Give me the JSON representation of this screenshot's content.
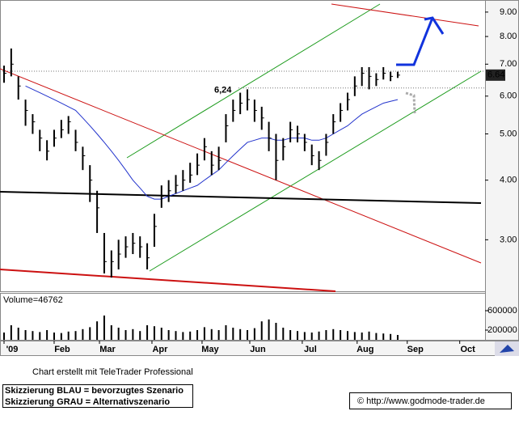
{
  "chart_data": {
    "type": "ohlc",
    "x": [
      0,
      3,
      6,
      9,
      12,
      15,
      18,
      21,
      24,
      27,
      30,
      33,
      36,
      39,
      42,
      45,
      48,
      51,
      54,
      57,
      60,
      63,
      66,
      69,
      72,
      75,
      78,
      81,
      84,
      87,
      90,
      93,
      96,
      99,
      102,
      105,
      108,
      111,
      114,
      117,
      120,
      123,
      126,
      129,
      132,
      135,
      138,
      141,
      144,
      147,
      150,
      153,
      156,
      159,
      162,
      165
    ],
    "high": [
      6.95,
      7.55,
      6.6,
      5.9,
      5.5,
      5.1,
      4.85,
      5.1,
      5.35,
      5.45,
      5.1,
      4.7,
      4.3,
      3.8,
      3.1,
      2.85,
      3.0,
      3.05,
      3.1,
      3.05,
      2.95,
      3.4,
      3.9,
      4.0,
      4.1,
      4.2,
      4.35,
      4.55,
      4.9,
      4.6,
      4.7,
      5.5,
      5.9,
      6.1,
      6.2,
      5.9,
      5.7,
      5.3,
      5.0,
      4.9,
      5.3,
      5.2,
      5.0,
      4.75,
      4.6,
      5.0,
      5.5,
      5.8,
      6.1,
      6.6,
      6.9,
      6.9,
      6.7,
      6.9,
      6.75,
      6.75
    ],
    "low": [
      6.4,
      6.6,
      5.9,
      5.2,
      5.0,
      4.6,
      4.4,
      4.7,
      4.9,
      5.0,
      4.6,
      4.2,
      3.6,
      3.1,
      2.55,
      2.5,
      2.6,
      2.75,
      2.8,
      2.75,
      2.6,
      2.9,
      3.5,
      3.6,
      3.75,
      3.8,
      3.95,
      4.1,
      4.4,
      4.1,
      4.2,
      4.8,
      5.3,
      5.5,
      5.6,
      5.3,
      5.1,
      4.6,
      4.0,
      4.4,
      4.8,
      4.8,
      4.6,
      4.3,
      4.2,
      4.5,
      5.0,
      5.3,
      5.6,
      6.0,
      6.3,
      6.2,
      6.3,
      6.5,
      6.45,
      6.55
    ],
    "close": [
      6.7,
      7.0,
      6.3,
      5.6,
      5.3,
      4.9,
      4.6,
      4.9,
      5.1,
      5.3,
      4.8,
      4.5,
      4.0,
      3.5,
      2.7,
      2.7,
      2.8,
      2.9,
      2.95,
      2.9,
      2.75,
      3.2,
      3.7,
      3.8,
      3.9,
      4.0,
      4.1,
      4.3,
      4.7,
      4.3,
      4.4,
      5.2,
      5.6,
      5.8,
      5.9,
      5.6,
      5.4,
      4.9,
      4.4,
      4.7,
      5.1,
      5.0,
      4.8,
      4.5,
      4.4,
      4.8,
      5.3,
      5.6,
      5.9,
      6.3,
      6.7,
      6.6,
      6.5,
      6.7,
      6.6,
      6.64
    ],
    "color": "#000000",
    "ma": {
      "color": "#2233cc",
      "values": [
        null,
        null,
        null,
        6.3,
        6.2,
        6.1,
        6.0,
        5.9,
        5.8,
        5.7,
        5.6,
        5.4,
        5.2,
        5.0,
        4.8,
        4.6,
        4.4,
        4.2,
        4.0,
        3.85,
        3.7,
        3.65,
        3.65,
        3.7,
        3.75,
        3.8,
        3.85,
        3.9,
        4.0,
        4.1,
        4.2,
        4.35,
        4.5,
        4.65,
        4.8,
        4.85,
        4.9,
        4.9,
        4.85,
        4.85,
        4.9,
        4.9,
        4.9,
        4.85,
        4.85,
        4.9,
        5.0,
        5.1,
        5.2,
        5.35,
        5.5,
        5.6,
        5.7,
        5.8,
        5.85,
        5.9
      ]
    },
    "log_scale": true,
    "ylim": [
      2.34,
      9.54
    ],
    "yticks": [
      {
        "value": 3,
        "label": "3.00"
      },
      {
        "value": 4,
        "label": "4.00"
      },
      {
        "value": 5,
        "label": "5.00"
      },
      {
        "value": 6,
        "label": "6.00"
      },
      {
        "value": 7,
        "label": "7.00"
      },
      {
        "value": 8,
        "label": "8.00"
      },
      {
        "value": 9,
        "label": "9.00"
      }
    ],
    "xlim": [
      0,
      205
    ],
    "xticks": [
      {
        "value": 0,
        "label": "'09"
      },
      {
        "value": 21,
        "label": "Feb"
      },
      {
        "value": 40,
        "label": "Mar"
      },
      {
        "value": 62,
        "label": "Apr"
      },
      {
        "value": 83,
        "label": "May"
      },
      {
        "value": 103,
        "label": "Jun"
      },
      {
        "value": 125,
        "label": "Jul"
      },
      {
        "value": 148,
        "label": "Aug"
      },
      {
        "value": 169,
        "label": "Sep"
      },
      {
        "value": 191,
        "label": "Oct"
      }
    ],
    "last_price": {
      "value": 6.64,
      "label": "6.64"
    },
    "annotation": {
      "value": 6.24,
      "label": "6,24"
    },
    "volume": {
      "label": "Volume=46762",
      "color": "#000000",
      "values": [
        150000,
        300000,
        250000,
        200000,
        180000,
        160000,
        200000,
        150000,
        140000,
        170000,
        180000,
        220000,
        260000,
        380000,
        500000,
        300000,
        250000,
        200000,
        220000,
        180000,
        300000,
        280000,
        250000,
        200000,
        180000,
        160000,
        170000,
        200000,
        260000,
        220000,
        200000,
        300000,
        250000,
        220000,
        200000,
        240000,
        380000,
        420000,
        350000,
        250000,
        200000,
        180000,
        160000,
        150000,
        170000,
        200000,
        220000,
        200000,
        180000,
        160000,
        150000,
        170000,
        140000,
        130000,
        120000,
        100000
      ],
      "ylim": [
        0,
        900000
      ],
      "yticks": [
        200000,
        600000
      ]
    }
  },
  "footer": {
    "credit": "Chart erstellt mit TeleTrader Professional",
    "legend_blue": "Skizzierung BLAU = bevorzugtes Szenario",
    "legend_gray": "Skizzierung GRAU = Alternativszenario",
    "copyright": "© http://www.godmode-trader.de"
  }
}
